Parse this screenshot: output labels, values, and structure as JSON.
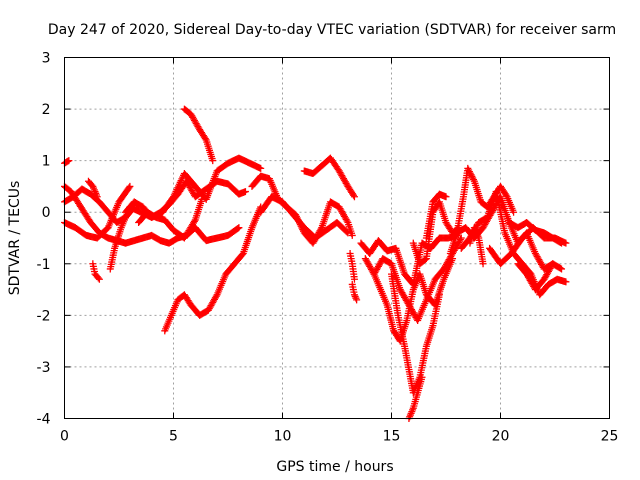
{
  "chart_data": {
    "type": "scatter",
    "title": "Day 247 of 2020, Sidereal Day-to-day VTEC variation (SDTVAR) for receiver sarm",
    "xlabel": "GPS time / hours",
    "ylabel": "SDTVAR / TECUs",
    "xlim": [
      0,
      25
    ],
    "ylim": [
      -4,
      3
    ],
    "xticks": [
      0,
      5,
      10,
      15,
      20,
      25
    ],
    "yticks": [
      -4,
      -3,
      -2,
      -1,
      0,
      1,
      2,
      3
    ],
    "grid": true,
    "marker": "+",
    "color": "#ff0000",
    "series": [
      {
        "name": "s1",
        "x": [
          0.0,
          0.2
        ],
        "y": [
          0.95,
          1.0
        ]
      },
      {
        "name": "s2",
        "x": [
          0.0,
          0.3,
          0.6,
          0.9,
          1.2,
          1.6,
          2.0,
          2.4,
          2.8
        ],
        "y": [
          0.5,
          0.4,
          0.2,
          0.0,
          -0.2,
          -0.4,
          -0.5,
          -0.55,
          -0.6
        ]
      },
      {
        "name": "s3",
        "x": [
          0.0,
          0.5,
          1.0,
          1.5,
          2.0,
          2.5,
          3.0
        ],
        "y": [
          -0.2,
          -0.3,
          -0.45,
          -0.5,
          -0.3,
          0.2,
          0.5
        ]
      },
      {
        "name": "s4",
        "x": [
          0.0,
          0.4,
          0.8,
          1.2,
          1.6,
          2.0,
          2.4,
          2.8,
          3.2
        ],
        "y": [
          0.2,
          0.3,
          0.45,
          0.35,
          0.2,
          0.0,
          -0.2,
          -0.1,
          0.1
        ]
      },
      {
        "name": "s5",
        "x": [
          1.1,
          1.3,
          1.5
        ],
        "y": [
          0.6,
          0.5,
          0.3
        ]
      },
      {
        "name": "s6",
        "x": [
          1.3,
          1.4,
          1.6
        ],
        "y": [
          -1.0,
          -1.2,
          -1.3
        ]
      },
      {
        "name": "s7",
        "x": [
          2.1,
          2.3,
          2.6,
          2.9
        ],
        "y": [
          -1.1,
          -0.7,
          -0.3,
          0.0
        ]
      },
      {
        "name": "s8",
        "x": [
          2.8,
          3.2,
          3.6,
          4.0,
          4.4,
          4.8,
          5.2,
          5.6,
          6.0,
          6.5,
          7.0,
          7.5,
          8.0
        ],
        "y": [
          -0.6,
          -0.55,
          -0.5,
          -0.45,
          -0.55,
          -0.6,
          -0.5,
          -0.45,
          -0.3,
          -0.55,
          -0.5,
          -0.45,
          -0.3
        ]
      },
      {
        "name": "s9",
        "x": [
          2.8,
          3.2,
          3.6,
          4.0,
          4.4,
          4.8,
          5.2,
          5.6,
          6.0,
          6.5,
          7.0,
          7.5,
          8.0,
          8.3
        ],
        "y": [
          0.0,
          0.2,
          0.1,
          -0.1,
          0.0,
          0.15,
          0.35,
          0.6,
          0.3,
          0.45,
          0.6,
          0.55,
          0.35,
          0.4
        ]
      },
      {
        "name": "s10",
        "x": [
          3.0,
          3.5,
          4.0,
          4.5,
          5.0,
          5.5,
          6.0,
          6.5,
          7.0,
          7.5,
          8.0,
          8.5,
          9.0
        ],
        "y": [
          0.1,
          0.0,
          -0.1,
          0.0,
          0.3,
          0.75,
          0.5,
          0.25,
          0.8,
          0.95,
          1.05,
          0.95,
          0.85
        ]
      },
      {
        "name": "s11",
        "x": [
          3.4,
          3.8,
          4.2,
          4.6,
          5.0,
          5.5,
          6.0,
          6.3
        ],
        "y": [
          -0.2,
          0.0,
          -0.1,
          -0.15,
          -0.35,
          -0.5,
          -0.15,
          0.25
        ]
      },
      {
        "name": "s12",
        "x": [
          4.6,
          4.9,
          5.2,
          5.5,
          5.8,
          6.2,
          6.6,
          7.0,
          7.4,
          7.8,
          8.2,
          8.6,
          9.0
        ],
        "y": [
          -2.3,
          -2.0,
          -1.7,
          -1.6,
          -1.8,
          -2.0,
          -1.9,
          -1.6,
          -1.2,
          -1.0,
          -0.8,
          -0.3,
          0.1
        ]
      },
      {
        "name": "s13",
        "x": [
          5.5,
          5.8,
          6.2,
          6.5,
          6.8
        ],
        "y": [
          2.0,
          1.9,
          1.6,
          1.4,
          1.0
        ]
      },
      {
        "name": "s14",
        "x": [
          8.6,
          9.0,
          9.4,
          9.8,
          10.2,
          10.6,
          11.0,
          11.4,
          11.8,
          12.2,
          12.6,
          13.0,
          13.2
        ],
        "y": [
          0.5,
          0.7,
          0.65,
          0.25,
          0.1,
          -0.05,
          -0.4,
          -0.6,
          -0.3,
          0.2,
          0.1,
          -0.2,
          -0.45
        ]
      },
      {
        "name": "s15",
        "x": [
          9.0,
          9.5,
          10.0,
          10.5,
          11.0,
          11.5,
          12.0,
          12.5,
          13.0
        ],
        "y": [
          0.0,
          0.3,
          0.2,
          -0.05,
          -0.3,
          -0.5,
          -0.35,
          -0.2,
          -0.4
        ]
      },
      {
        "name": "s16",
        "x": [
          11.0,
          11.4,
          11.8,
          12.2,
          12.6,
          13.0,
          13.3
        ],
        "y": [
          0.8,
          0.75,
          0.9,
          1.05,
          0.8,
          0.5,
          0.3
        ]
      },
      {
        "name": "s17",
        "x": [
          13.1,
          13.2,
          13.3
        ],
        "y": [
          -0.8,
          -1.0,
          -1.3
        ]
      },
      {
        "name": "s18",
        "x": [
          13.2,
          13.3,
          13.4
        ],
        "y": [
          -1.4,
          -1.6,
          -1.7
        ]
      },
      {
        "name": "s19",
        "x": [
          13.6,
          14.0,
          14.4,
          14.8,
          15.2,
          15.6,
          16.0,
          16.4,
          16.8,
          17.2,
          17.6,
          18.0
        ],
        "y": [
          -0.6,
          -0.8,
          -0.55,
          -0.75,
          -0.7,
          -1.2,
          -1.4,
          -0.6,
          -0.7,
          -0.5,
          -0.5,
          -0.45
        ]
      },
      {
        "name": "s20",
        "x": [
          13.8,
          14.2,
          14.6,
          15.0,
          15.4,
          15.8,
          16.2,
          16.6,
          17.0,
          17.4,
          17.8,
          18.2
        ],
        "y": [
          -0.9,
          -1.2,
          -0.9,
          -1.0,
          -1.5,
          -1.8,
          -2.1,
          -1.7,
          -1.3,
          -1.1,
          -0.8,
          -0.5
        ]
      },
      {
        "name": "s21",
        "x": [
          14.2,
          14.5,
          14.8,
          15.1,
          15.4,
          15.7,
          16.0,
          16.3,
          16.6,
          17.0,
          17.4,
          17.8
        ],
        "y": [
          -1.2,
          -1.5,
          -1.8,
          -2.3,
          -2.5,
          -2.1,
          -1.5,
          -1.2,
          -1.6,
          -1.8,
          -1.3,
          -0.9
        ]
      },
      {
        "name": "s22",
        "x": [
          15.0,
          15.3,
          15.6,
          16.0,
          16.3,
          16.6,
          16.9,
          17.2
        ],
        "y": [
          -1.2,
          -2.0,
          -2.6,
          -3.5,
          -3.2,
          -2.6,
          -2.2,
          -1.6
        ]
      },
      {
        "name": "s23",
        "x": [
          15.8,
          16.0,
          16.2,
          16.4
        ],
        "y": [
          -4.0,
          -3.8,
          -3.5,
          -3.2
        ]
      },
      {
        "name": "s24",
        "x": [
          16.0,
          16.3,
          16.6,
          16.9,
          17.2,
          17.5,
          17.8,
          18.1
        ],
        "y": [
          -0.6,
          -1.0,
          -0.9,
          0.0,
          0.2,
          -0.2,
          -0.4,
          -0.3
        ]
      },
      {
        "name": "s25",
        "x": [
          16.6,
          16.9,
          17.2,
          17.5
        ],
        "y": [
          -0.5,
          0.2,
          0.35,
          0.3
        ]
      },
      {
        "name": "s26",
        "x": [
          17.7,
          18.0,
          18.3,
          18.5,
          18.8,
          19.1,
          19.4,
          19.7,
          20.0,
          20.3,
          20.6
        ],
        "y": [
          -0.8,
          -0.4,
          0.3,
          0.85,
          0.6,
          0.2,
          0.1,
          0.3,
          0.5,
          0.3,
          0.0
        ]
      },
      {
        "name": "s27",
        "x": [
          18.0,
          18.4,
          18.8,
          19.2,
          19.6,
          20.0,
          20.4,
          20.8,
          21.2,
          21.6,
          22.0,
          22.4,
          22.8
        ],
        "y": [
          -0.4,
          -0.3,
          -0.5,
          -0.3,
          0.0,
          0.3,
          -0.2,
          -0.6,
          -0.4,
          -0.8,
          -1.1,
          -1.0,
          -1.1
        ]
      },
      {
        "name": "s28",
        "x": [
          18.2,
          18.6,
          19.0,
          19.4,
          19.8,
          20.2,
          20.6,
          21.0,
          21.4,
          21.8,
          22.2,
          22.6,
          23.0
        ],
        "y": [
          -0.7,
          -0.5,
          -0.2,
          -0.1,
          0.4,
          -0.4,
          -0.8,
          -1.0,
          -1.2,
          -1.6,
          -1.4,
          -1.3,
          -1.35
        ]
      },
      {
        "name": "s29",
        "x": [
          18.6,
          18.8,
          19.0,
          19.2
        ],
        "y": [
          -0.6,
          -0.3,
          -0.5,
          -1.0
        ]
      },
      {
        "name": "s30",
        "x": [
          19.5,
          20.0,
          20.5,
          21.0,
          21.5,
          22.0,
          22.5,
          23.0
        ],
        "y": [
          -0.7,
          -1.0,
          -0.8,
          -0.5,
          -0.3,
          -0.5,
          -0.5,
          -0.6
        ]
      },
      {
        "name": "s31",
        "x": [
          20.4,
          20.8,
          21.2,
          21.6,
          22.0,
          22.4,
          22.8
        ],
        "y": [
          -0.2,
          -0.3,
          -0.2,
          -0.35,
          -0.4,
          -0.5,
          -0.6
        ]
      },
      {
        "name": "s32",
        "x": [
          20.8,
          21.2,
          21.6,
          22.0,
          22.4
        ],
        "y": [
          -1.0,
          -1.2,
          -1.5,
          -1.3,
          -1.0
        ]
      }
    ]
  }
}
